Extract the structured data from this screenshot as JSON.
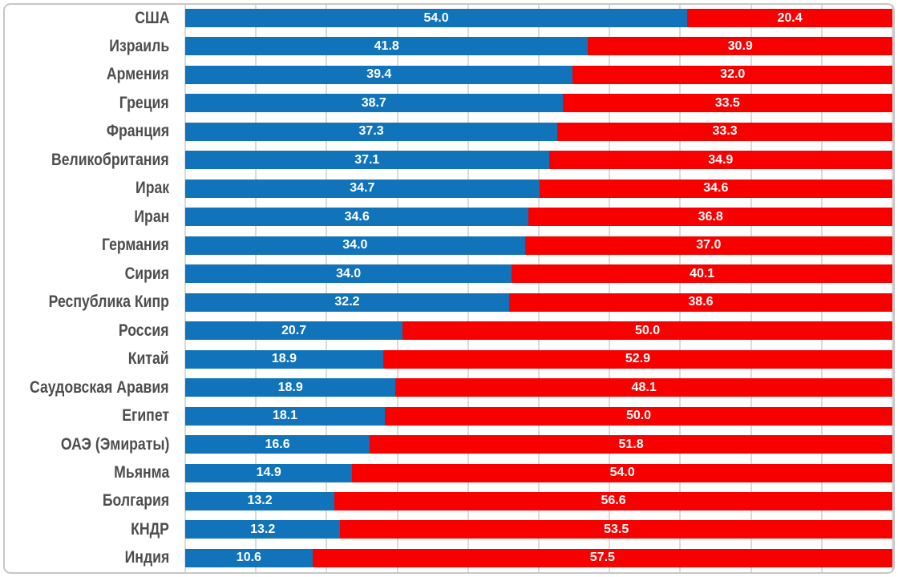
{
  "colors": {
    "blue": "#1173B9",
    "red": "#F80000",
    "label_text": "#4D4D4D",
    "value_text": "#FFFFFF",
    "gridline": "#DADADA",
    "frame_border": "#C6C6C6",
    "background": "#FFFFFF"
  },
  "chart_data": {
    "type": "bar",
    "subtype": "stacked-100-percent",
    "orientation": "horizontal",
    "title": "",
    "xlabel": "",
    "ylabel": "",
    "grid": true,
    "gridline_interval_percent": 10,
    "legend": "none",
    "value_format": "one-decimal",
    "categories": [
      "США",
      "Израиль",
      "Армения",
      "Греция",
      "Франция",
      "Великобритания",
      "Ирак",
      "Иран",
      "Германия",
      "Сирия",
      "Республика Кипр",
      "Россия",
      "Китай",
      "Саудовская Аравия",
      "Египет",
      "ОАЭ (Эмираты)",
      "Мьянма",
      "Болгария",
      "КНДР",
      "Индия"
    ],
    "series": [
      {
        "name": "blue-segment",
        "color": "#1173B9",
        "values": [
          54.0,
          41.8,
          39.4,
          38.7,
          37.3,
          37.1,
          34.7,
          34.6,
          34.0,
          34.0,
          32.2,
          20.7,
          18.9,
          18.9,
          18.1,
          16.6,
          14.9,
          13.2,
          13.2,
          10.6
        ]
      },
      {
        "name": "red-segment",
        "color": "#F80000",
        "values": [
          20.4,
          30.9,
          32.0,
          33.5,
          33.3,
          34.9,
          34.6,
          36.8,
          37.0,
          40.1,
          38.6,
          50.0,
          52.9,
          48.1,
          50.0,
          51.8,
          54.0,
          56.6,
          53.5,
          57.5
        ]
      }
    ]
  }
}
